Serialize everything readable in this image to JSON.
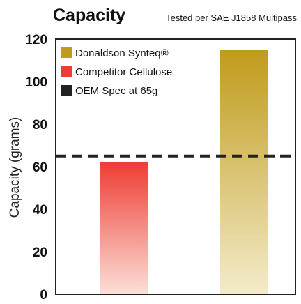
{
  "chart_data": {
    "type": "bar",
    "title": "Capacity",
    "subtitle": "Tested per SAE J1858 Multipass",
    "ylabel": "Capacity (grams)",
    "xlabel": "",
    "ylim": [
      0,
      120
    ],
    "yticks": [
      0,
      20,
      40,
      60,
      80,
      100,
      120
    ],
    "grid": false,
    "legend_position": "top-left",
    "categories": [
      "Competitor Cellulose",
      "Donaldson Synteq®"
    ],
    "series": [
      {
        "name": "Competitor Cellulose",
        "color": "#ee3d34",
        "category": "Competitor Cellulose",
        "value": 62
      },
      {
        "name": "Donaldson Synteq®",
        "color": "#c09b1b",
        "category": "Donaldson Synteq®",
        "value": 115
      }
    ],
    "reference_line": {
      "name": "OEM Spec at 65g",
      "value": 65,
      "color": "#222222",
      "style": "dashed"
    },
    "legend": [
      {
        "label": "Donaldson Synteq®",
        "color": "#c09b1b"
      },
      {
        "label": "Competitor Cellulose",
        "color": "#ee3d34"
      },
      {
        "label": "OEM Spec at 65g",
        "color": "#222222"
      }
    ]
  }
}
